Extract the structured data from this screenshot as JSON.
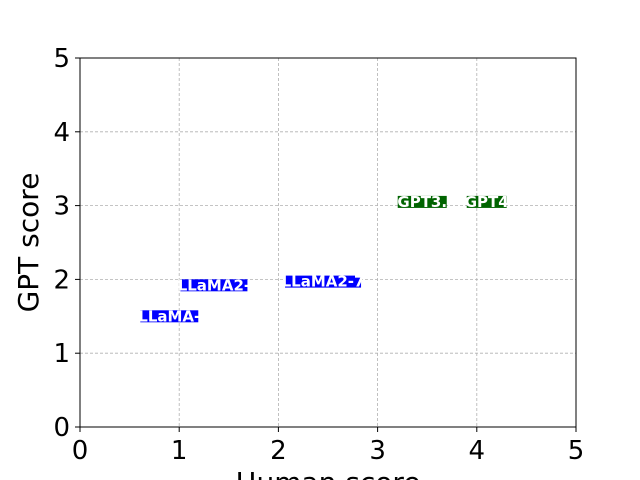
{
  "chart_data": {
    "type": "scatter",
    "title": "",
    "xlabel": "Human score",
    "ylabel": "GPT score",
    "xlim": [
      0,
      5
    ],
    "ylim": [
      0,
      5
    ],
    "xticks": [
      "0",
      "1",
      "2",
      "3",
      "4",
      "5"
    ],
    "yticks": [
      "0",
      "1",
      "2",
      "3",
      "4",
      "5"
    ],
    "grid": true,
    "points": [
      {
        "label": "LLaMA-",
        "x": 0.9,
        "y": 1.5,
        "color": "#0000ff"
      },
      {
        "label": "LLaMA2-",
        "x": 1.35,
        "y": 1.92,
        "color": "#0000ff"
      },
      {
        "label": "LLaMA2-7",
        "x": 2.45,
        "y": 1.97,
        "color": "#0000ff"
      },
      {
        "label": "GPT3.",
        "x": 3.45,
        "y": 3.05,
        "color": "#006400"
      },
      {
        "label": "GPT4",
        "x": 4.1,
        "y": 3.05,
        "color": "#006400"
      }
    ]
  }
}
